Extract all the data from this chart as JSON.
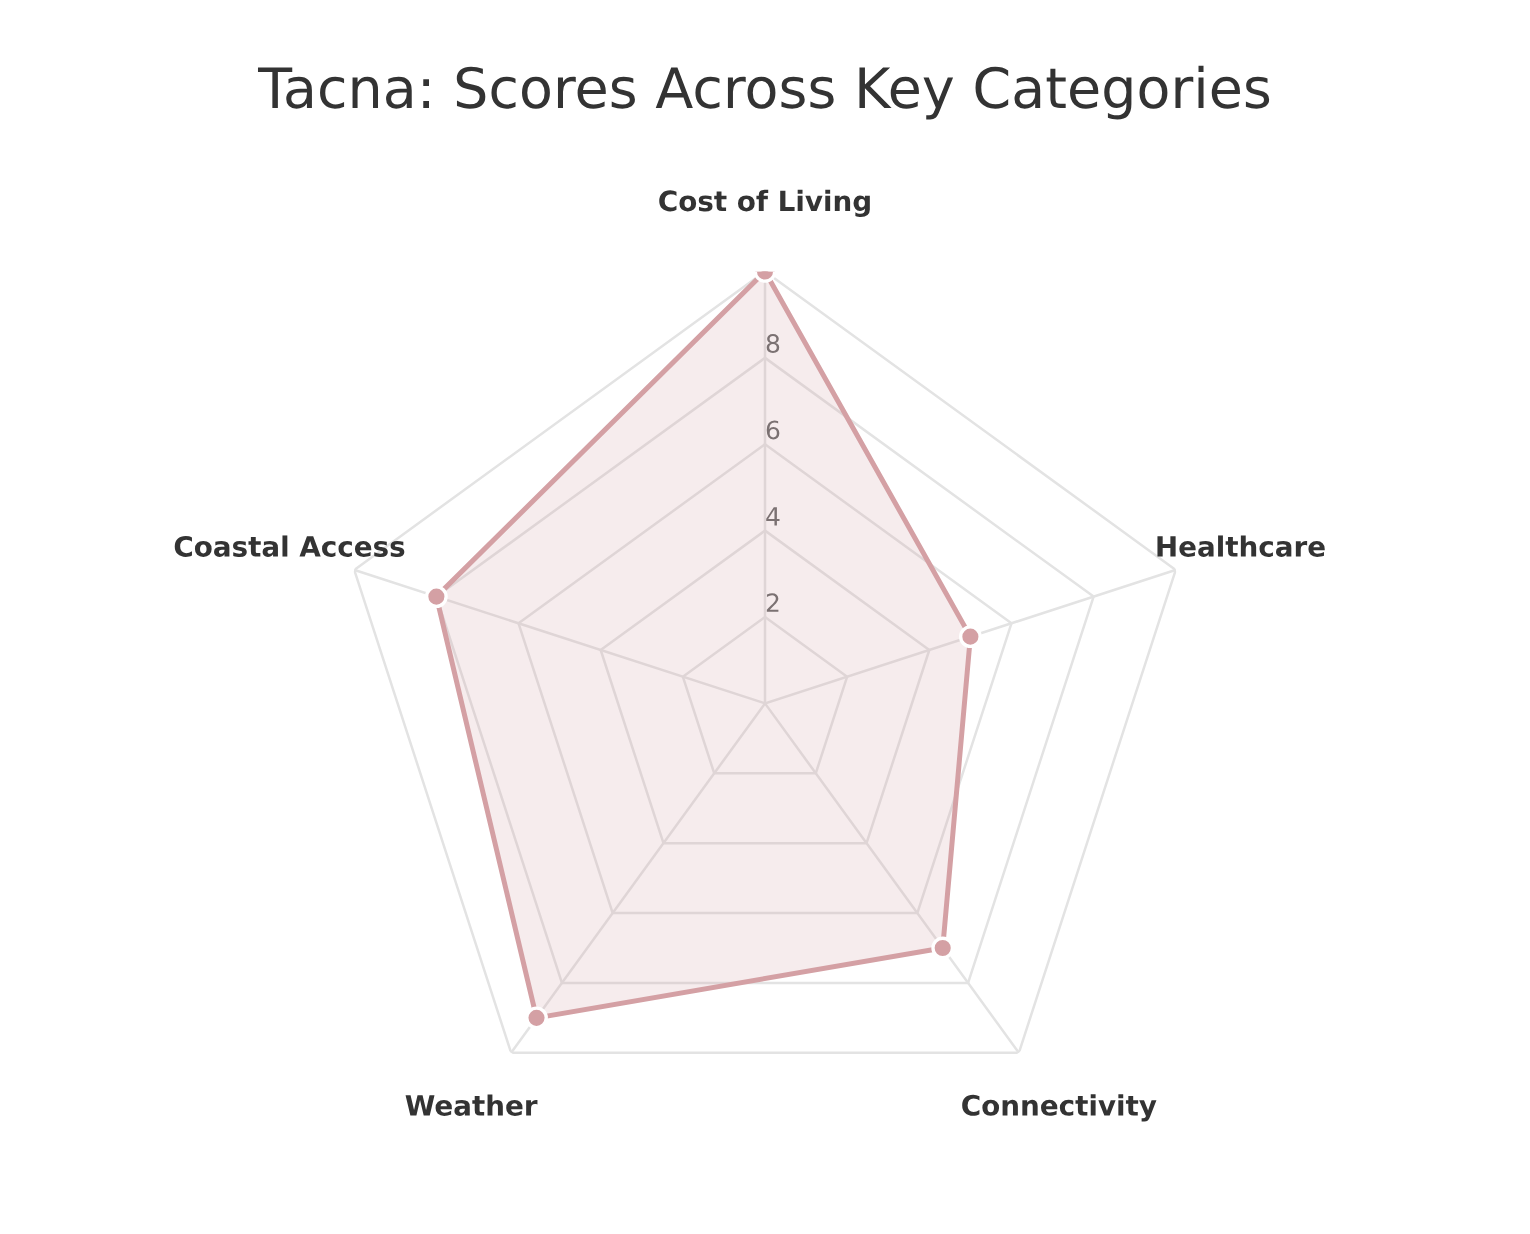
{
  "chart_data": {
    "type": "radar",
    "title": "Tacna: Scores Across Key Categories",
    "categories": [
      "Cost of Living",
      "Healthcare",
      "Connectivity",
      "Weather",
      "Coastal Access"
    ],
    "series": [
      {
        "color": "#d4a0a4",
        "values": [
          10,
          5,
          7,
          9,
          8
        ]
      }
    ],
    "ylim": [
      0,
      10
    ],
    "yticks": [
      2,
      4,
      6,
      8
    ],
    "grid": true,
    "marker": "circle",
    "line_style": "solid"
  }
}
